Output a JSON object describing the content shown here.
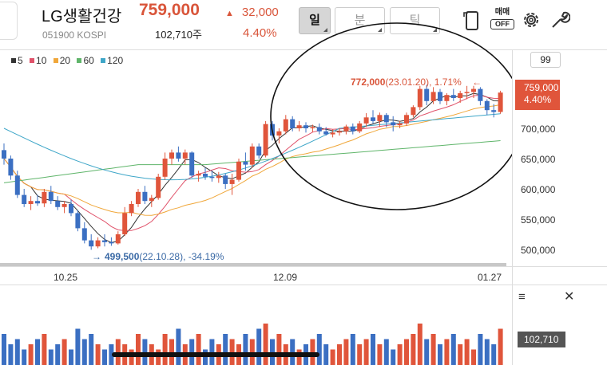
{
  "header": {
    "stock_name": "LG생활건강",
    "stock_code": "051900 KOSPI",
    "price": "759,000",
    "change_arrow": "▲",
    "change": "32,000",
    "volume": "102,710주",
    "change_pct": "4.40%",
    "period_tabs": [
      {
        "label": "일",
        "active": true
      },
      {
        "label": "분",
        "active": false
      },
      {
        "label": "틱",
        "active": false
      }
    ],
    "trade_toggle": {
      "label": "매매",
      "state": "OFF"
    },
    "icons": [
      "tablet-rotate-icon",
      "gear-icon",
      "wrench-icon"
    ]
  },
  "ma_legend": [
    {
      "label": "5",
      "color": "#333333"
    },
    {
      "label": "10",
      "color": "#e0526a"
    },
    {
      "label": "20",
      "color": "#f0a73a"
    },
    {
      "label": "60",
      "color": "#5fb56a"
    },
    {
      "label": "120",
      "color": "#3ea6c8"
    }
  ],
  "price_axis": {
    "period_box": "99",
    "current_price": "759,000",
    "current_pct": "4.40%",
    "ticks": [
      "700,000",
      "650,000",
      "600,000",
      "550,000",
      "500,000"
    ]
  },
  "date_axis": [
    "10.25",
    "12.09",
    "01.27"
  ],
  "annotations": {
    "high_value": "772,000",
    "high_detail": "(23.01.20), 1.71%",
    "high_arrow": "←",
    "low_arrow": "→",
    "low_value": "499,500",
    "low_detail": "(22.10.28), -34.19%"
  },
  "volume_panel": {
    "current": "102,710",
    "menu_icon": "≡",
    "close_icon": "✕"
  },
  "colors": {
    "up": "#e0553b",
    "down": "#3b6fc2",
    "accent": "#d9553a"
  },
  "chart_data": {
    "type": "candlestick",
    "y_unit": "KRW",
    "ylim": [
      470000,
      810000
    ],
    "candles": [
      [
        664000,
        675000,
        640000,
        650000
      ],
      [
        650000,
        655000,
        615000,
        622000
      ],
      [
        622000,
        630000,
        585000,
        590000
      ],
      [
        590000,
        600000,
        570000,
        575000
      ],
      [
        575000,
        588000,
        565000,
        580000
      ],
      [
        580000,
        590000,
        572000,
        576000
      ],
      [
        576000,
        600000,
        570000,
        595000
      ],
      [
        595000,
        605000,
        575000,
        580000
      ],
      [
        580000,
        588000,
        565000,
        570000
      ],
      [
        570000,
        580000,
        560000,
        575000
      ],
      [
        575000,
        582000,
        555000,
        560000
      ],
      [
        560000,
        565000,
        530000,
        535000
      ],
      [
        535000,
        545000,
        510000,
        515000
      ],
      [
        515000,
        525000,
        499500,
        505000
      ],
      [
        505000,
        520000,
        502000,
        515000
      ],
      [
        515000,
        525000,
        505000,
        512000
      ],
      [
        512000,
        520000,
        506000,
        510000
      ],
      [
        510000,
        530000,
        508000,
        525000
      ],
      [
        525000,
        570000,
        522000,
        560000
      ],
      [
        560000,
        580000,
        555000,
        575000
      ],
      [
        575000,
        600000,
        570000,
        595000
      ],
      [
        595000,
        605000,
        575000,
        580000
      ],
      [
        580000,
        590000,
        570000,
        585000
      ],
      [
        585000,
        625000,
        582000,
        620000
      ],
      [
        620000,
        660000,
        615000,
        650000
      ],
      [
        650000,
        665000,
        640000,
        660000
      ],
      [
        660000,
        670000,
        645000,
        650000
      ],
      [
        650000,
        665000,
        640000,
        660000
      ],
      [
        660000,
        662000,
        618000,
        622000
      ],
      [
        622000,
        630000,
        612000,
        625000
      ],
      [
        625000,
        635000,
        615000,
        620000
      ],
      [
        620000,
        630000,
        612000,
        618000
      ],
      [
        618000,
        628000,
        610000,
        622000
      ],
      [
        622000,
        625000,
        600000,
        608000
      ],
      [
        608000,
        625000,
        590000,
        615000
      ],
      [
        615000,
        650000,
        612000,
        645000
      ],
      [
        645000,
        660000,
        630000,
        640000
      ],
      [
        640000,
        675000,
        635000,
        670000
      ],
      [
        670000,
        675000,
        650000,
        655000
      ],
      [
        655000,
        712000,
        652000,
        707000
      ],
      [
        707000,
        712000,
        680000,
        688000
      ],
      [
        688000,
        700000,
        675000,
        695000
      ],
      [
        695000,
        722000,
        690000,
        715000
      ],
      [
        715000,
        720000,
        695000,
        700000
      ],
      [
        700000,
        712000,
        695000,
        705000
      ],
      [
        705000,
        710000,
        693000,
        700000
      ],
      [
        700000,
        706000,
        694000,
        702000
      ],
      [
        702000,
        708000,
        690000,
        695000
      ],
      [
        695000,
        702000,
        688000,
        690000
      ],
      [
        690000,
        698000,
        685000,
        693000
      ],
      [
        693000,
        700000,
        688000,
        695000
      ],
      [
        695000,
        706000,
        690000,
        703000
      ],
      [
        703000,
        708000,
        690000,
        695000
      ],
      [
        695000,
        712000,
        692000,
        708000
      ],
      [
        708000,
        725000,
        702000,
        718000
      ],
      [
        718000,
        730000,
        708000,
        712000
      ],
      [
        712000,
        726000,
        702000,
        722000
      ],
      [
        722000,
        725000,
        702000,
        710000
      ],
      [
        710000,
        720000,
        695000,
        705000
      ],
      [
        705000,
        712000,
        700000,
        708000
      ],
      [
        708000,
        726000,
        704000,
        722000
      ],
      [
        722000,
        738000,
        718000,
        735000
      ],
      [
        735000,
        770000,
        730000,
        765000
      ],
      [
        765000,
        772000,
        738000,
        745000
      ],
      [
        745000,
        768000,
        740000,
        760000
      ],
      [
        760000,
        765000,
        740000,
        745000
      ],
      [
        745000,
        758000,
        738000,
        755000
      ],
      [
        755000,
        765000,
        745000,
        750000
      ],
      [
        750000,
        762000,
        742000,
        758000
      ],
      [
        758000,
        770000,
        748000,
        760000
      ],
      [
        760000,
        770000,
        750000,
        765000
      ],
      [
        765000,
        768000,
        738000,
        745000
      ],
      [
        745000,
        748000,
        722000,
        730000
      ],
      [
        730000,
        740000,
        718000,
        727000
      ],
      [
        727000,
        762000,
        724000,
        759000
      ]
    ],
    "volume": [
      6,
      4,
      5,
      3,
      4,
      5,
      6,
      3,
      4,
      5,
      3,
      7,
      5,
      6,
      4,
      3,
      4,
      5,
      4,
      3,
      6,
      5,
      4,
      3,
      6,
      5,
      7,
      4,
      5,
      6,
      3,
      5,
      4,
      6,
      5,
      4,
      6,
      5,
      7,
      8,
      5,
      6,
      4,
      5,
      3,
      4,
      5,
      6,
      4,
      3,
      4,
      5,
      6,
      4,
      5,
      6,
      4,
      5,
      3,
      4,
      5,
      6,
      8,
      5,
      6,
      4,
      5,
      6,
      4,
      5,
      3,
      6,
      5,
      4,
      7
    ]
  }
}
